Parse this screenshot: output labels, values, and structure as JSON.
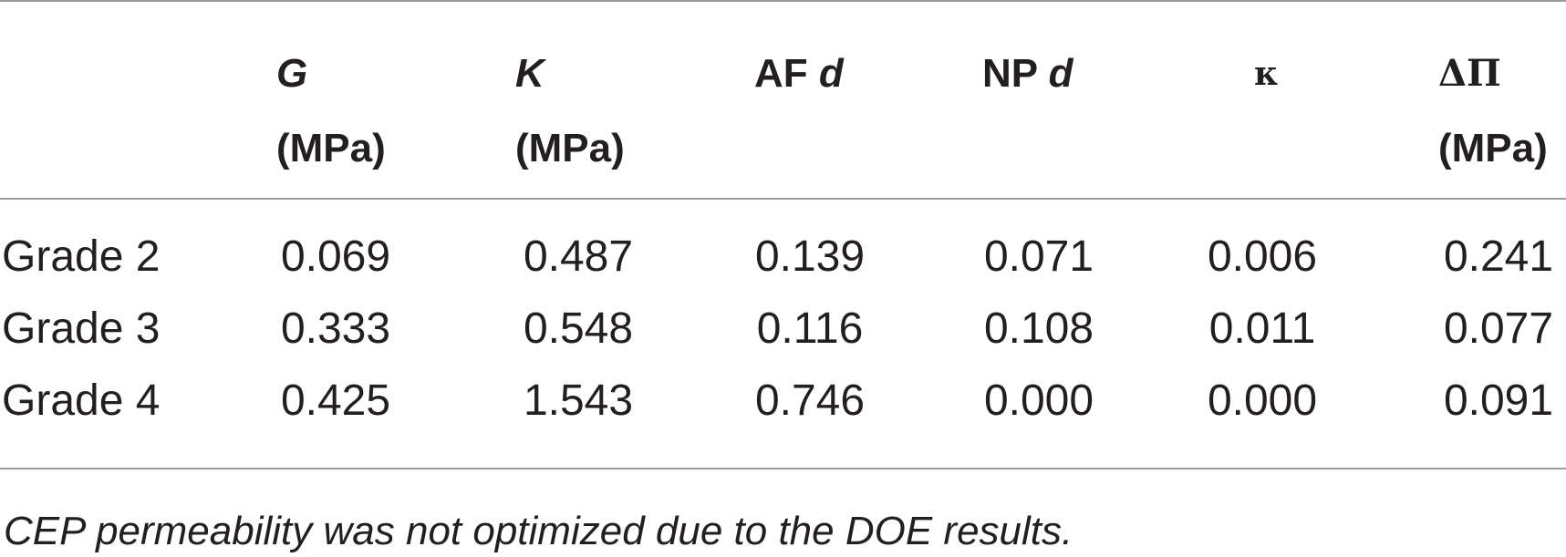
{
  "table": {
    "headers": [
      {
        "symbol": "G",
        "unit": "(MPa)"
      },
      {
        "symbol": "K",
        "unit": "(MPa)"
      },
      {
        "prefix": "AF ",
        "symbol": "d",
        "unit": ""
      },
      {
        "prefix": "NP ",
        "symbol": "d",
        "unit": ""
      },
      {
        "symbol": "κ",
        "unit": ""
      },
      {
        "symbol": "ΔΠ",
        "unit": "(MPa)"
      }
    ],
    "rows": [
      {
        "label": "Grade 2",
        "values": [
          "0.069",
          "0.487",
          "0.139",
          "0.071",
          "0.006",
          "0.241"
        ]
      },
      {
        "label": "Grade 3",
        "values": [
          "0.333",
          "0.548",
          "0.116",
          "0.108",
          "0.011",
          "0.077"
        ]
      },
      {
        "label": "Grade 4",
        "values": [
          "0.425",
          "1.543",
          "0.746",
          "0.000",
          "0.000",
          "0.091"
        ]
      }
    ]
  },
  "footnote": "CEP permeability was not optimized due to the DOE results."
}
